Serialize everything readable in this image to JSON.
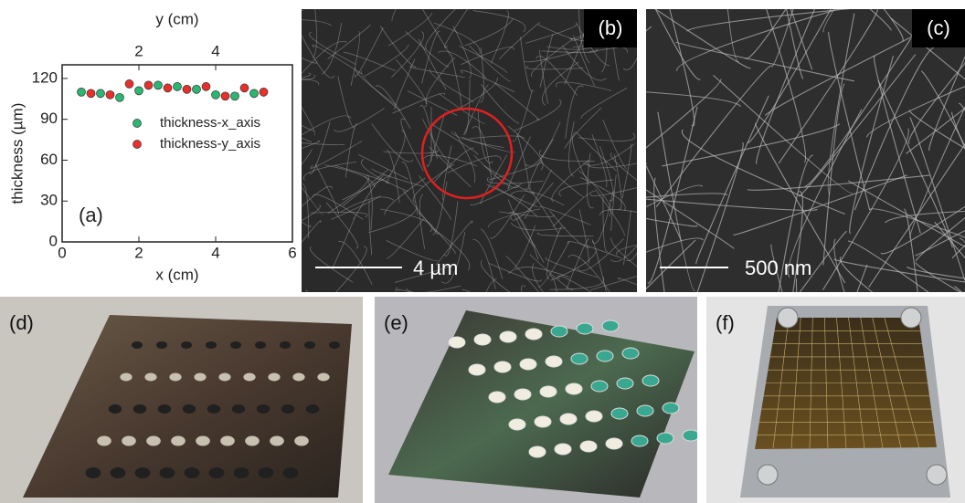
{
  "chart_data": {
    "type": "scatter",
    "title": "(a)",
    "xlabel": "x (cm)",
    "ylabel": "thickness (µm)",
    "x2label": "y (cm)",
    "xlim": [
      0,
      6
    ],
    "xticks": [
      0,
      2,
      4,
      6
    ],
    "x2ticks": [
      2,
      4
    ],
    "ylim": [
      0,
      130
    ],
    "yticks": [
      0,
      30,
      60,
      90,
      120
    ],
    "series": [
      {
        "name": "thickness-x_axis",
        "color": "#2bb673",
        "x": [
          0.5,
          1.0,
          1.5,
          2.0,
          2.5,
          3.0,
          3.5,
          4.0,
          4.5,
          5.0
        ],
        "values": [
          110,
          109,
          106,
          111,
          115,
          114,
          112,
          108,
          107,
          109
        ]
      },
      {
        "name": "thickness-y_axis",
        "color": "#e8302a",
        "x": [
          0.75,
          1.25,
          1.75,
          2.25,
          2.75,
          3.25,
          3.75,
          4.25,
          4.75,
          5.25
        ],
        "values": [
          109,
          108,
          116,
          115,
          113,
          112,
          114,
          107,
          113,
          110
        ]
      }
    ]
  },
  "panels": [
    {
      "label": "(b)",
      "scale": "4 µm"
    },
    {
      "label": "(c)",
      "scale": "500 nm"
    },
    {
      "label": "(d)"
    },
    {
      "label": "(e)"
    },
    {
      "label": "(f)"
    }
  ]
}
